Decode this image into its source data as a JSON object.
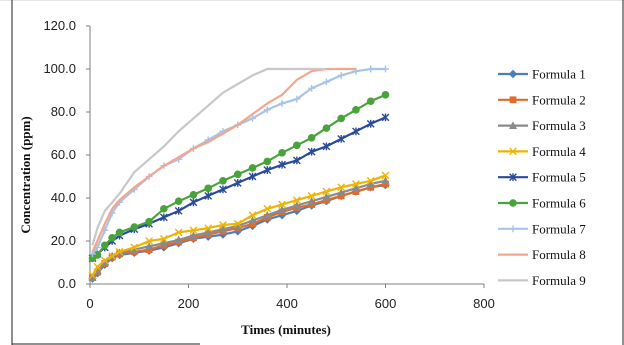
{
  "chart_data": {
    "type": "line",
    "title": "",
    "xlabel": "Times (minutes)",
    "ylabel": "Concentration (ppm)",
    "xlim": [
      0,
      800
    ],
    "ylim": [
      0,
      120
    ],
    "x_ticks": [
      "0",
      "200",
      "400",
      "600",
      "800"
    ],
    "y_ticks": [
      "0.0",
      "20.0",
      "40.0",
      "60.0",
      "80.0",
      "100.0",
      "120.0"
    ],
    "grid": false,
    "legend_position": "right",
    "series": [
      {
        "name": "Formula 1",
        "color": "#4a7ebb",
        "marker": "diamond",
        "x": [
          5,
          15,
          30,
          45,
          60,
          90,
          120,
          150,
          180,
          210,
          240,
          270,
          300,
          330,
          360,
          390,
          420,
          450,
          480,
          510,
          540,
          570,
          600
        ],
        "y": [
          2.5,
          5,
          9,
          12,
          13.5,
          14.5,
          15.5,
          17,
          19,
          21,
          22,
          23,
          24.5,
          27,
          30,
          32,
          34,
          36.5,
          38.5,
          41,
          43,
          45,
          46
        ]
      },
      {
        "name": "Formula 2",
        "color": "#e06b2d",
        "marker": "square",
        "x": [
          5,
          15,
          30,
          45,
          60,
          90,
          120,
          150,
          180,
          210,
          240,
          270,
          300,
          330,
          360,
          390,
          420,
          450,
          480,
          510,
          540,
          570,
          600
        ],
        "y": [
          3,
          5.5,
          9.5,
          12.5,
          14,
          15,
          16,
          18,
          19.5,
          21.5,
          23,
          24.5,
          26,
          28,
          31,
          33.5,
          35.5,
          37,
          39,
          41,
          43,
          45,
          46.5
        ]
      },
      {
        "name": "Formula 3",
        "color": "#8a8a8a",
        "marker": "triangle",
        "x": [
          5,
          15,
          30,
          45,
          60,
          90,
          120,
          150,
          180,
          210,
          240,
          270,
          300,
          330,
          360,
          390,
          420,
          450,
          480,
          510,
          540,
          570,
          600
        ],
        "y": [
          3,
          6,
          10,
          13,
          14.5,
          16,
          17.5,
          19,
          20.5,
          22.5,
          24,
          25.5,
          27,
          29.5,
          32,
          34.5,
          36.5,
          38.5,
          40.5,
          42.5,
          44.5,
          46.5,
          48
        ]
      },
      {
        "name": "Formula 4",
        "color": "#f0b400",
        "marker": "x",
        "x": [
          5,
          15,
          30,
          45,
          60,
          90,
          120,
          150,
          180,
          210,
          240,
          270,
          300,
          330,
          360,
          390,
          420,
          450,
          480,
          510,
          540,
          570,
          600
        ],
        "y": [
          4,
          8,
          11,
          13,
          15,
          17,
          20,
          21,
          24,
          25,
          26,
          27.5,
          28,
          32,
          35,
          37,
          39,
          41,
          43,
          45,
          46.5,
          48,
          50.5
        ]
      },
      {
        "name": "Formula 5",
        "color": "#2a4a9a",
        "marker": "star",
        "x": [
          5,
          15,
          30,
          45,
          60,
          90,
          120,
          150,
          180,
          210,
          240,
          270,
          300,
          330,
          360,
          390,
          420,
          450,
          480,
          510,
          540,
          570,
          600
        ],
        "y": [
          12,
          14,
          17,
          20,
          22.5,
          25.5,
          28,
          31,
          34,
          38,
          41,
          44,
          47,
          50,
          53,
          55.5,
          57.5,
          61.5,
          64,
          67.5,
          71,
          74.5,
          77.5
        ]
      },
      {
        "name": "Formula 6",
        "color": "#4aa23a",
        "marker": "circle",
        "x": [
          5,
          15,
          30,
          45,
          60,
          90,
          120,
          150,
          180,
          210,
          240,
          270,
          300,
          330,
          360,
          390,
          420,
          450,
          480,
          510,
          540,
          570,
          600
        ],
        "y": [
          12,
          13.5,
          18,
          21.5,
          24,
          26.5,
          29,
          35,
          38.5,
          41.5,
          44.5,
          48,
          51,
          54,
          57,
          61,
          64.5,
          68,
          72.5,
          77,
          81,
          85,
          88
        ]
      },
      {
        "name": "Formula 7",
        "color": "#a7c4e6",
        "marker": "plus",
        "x": [
          5,
          15,
          30,
          45,
          60,
          90,
          120,
          150,
          180,
          210,
          240,
          270,
          300,
          330,
          360,
          390,
          420,
          450,
          480,
          510,
          540,
          570,
          600
        ],
        "y": [
          14,
          17,
          25,
          33,
          38,
          44,
          50,
          55,
          58,
          63,
          67,
          71,
          74,
          77,
          81,
          84,
          86,
          91,
          94,
          97,
          99,
          100,
          100
        ]
      },
      {
        "name": "Formula 8",
        "color": "#f4a58e",
        "marker": "none",
        "x": [
          5,
          15,
          30,
          45,
          60,
          90,
          120,
          150,
          180,
          210,
          240,
          270,
          300,
          330,
          360,
          390,
          420,
          450,
          480,
          510,
          540
        ],
        "y": [
          15,
          20,
          28,
          35,
          39,
          45,
          50,
          55,
          59,
          63,
          66,
          70,
          74,
          79,
          84,
          88,
          95,
          99,
          100,
          100,
          100
        ]
      },
      {
        "name": "Formula 9",
        "color": "#c8c8c8",
        "marker": "none",
        "x": [
          5,
          15,
          30,
          45,
          60,
          90,
          120,
          150,
          180,
          210,
          240,
          270,
          300,
          330,
          360,
          390,
          420,
          450,
          480
        ],
        "y": [
          18,
          26,
          34,
          38,
          42,
          52,
          58,
          64,
          71,
          77,
          83,
          89,
          93,
          97,
          100,
          100,
          100,
          100,
          100
        ]
      }
    ]
  }
}
